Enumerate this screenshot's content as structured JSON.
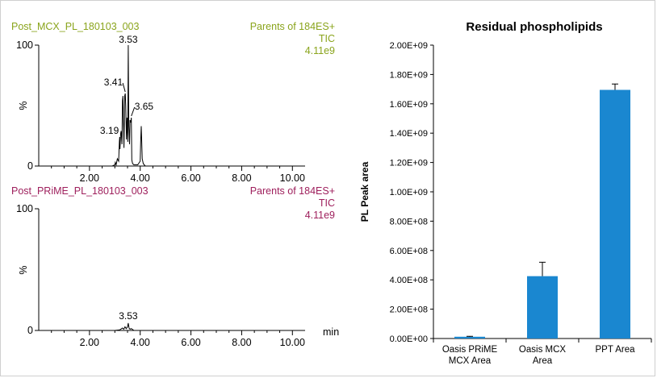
{
  "chart_data": [
    {
      "type": "line",
      "sample_name": "Post_MCX_PL_180103_003",
      "function_label": "Parents of 184ES+",
      "trace_label": "TIC",
      "scale_label": "4.11e9",
      "ylabel": "%",
      "xlim": [
        0,
        10.5
      ],
      "ylim": [
        0,
        100
      ],
      "x_ticks": [
        "2.00",
        "4.00",
        "6.00",
        "8.00",
        "10.00"
      ],
      "y_ticks": [
        "0",
        "100"
      ],
      "x_tick_values": [
        2,
        4,
        6,
        8,
        10
      ],
      "y_tick_values": [
        0,
        100
      ],
      "header_color": "#8aa41c",
      "x": [
        0.0,
        2.9,
        3.0,
        3.02,
        3.05,
        3.08,
        3.1,
        3.15,
        3.18,
        3.19,
        3.2,
        3.23,
        3.25,
        3.28,
        3.3,
        3.32,
        3.36,
        3.39,
        3.41,
        3.43,
        3.46,
        3.48,
        3.51,
        3.53,
        3.55,
        3.58,
        3.6,
        3.63,
        3.65,
        3.67,
        3.7,
        3.75,
        3.8,
        3.9,
        4.0,
        4.02,
        4.04,
        4.06,
        4.08,
        4.12,
        4.2,
        10.5
      ],
      "y": [
        0,
        0,
        1,
        3,
        1,
        4,
        6,
        4,
        20,
        24,
        14,
        27,
        29,
        18,
        54,
        58,
        15,
        58,
        60,
        50,
        22,
        40,
        20,
        100,
        33,
        18,
        38,
        36,
        40,
        5,
        2,
        1,
        1,
        1,
        4,
        20,
        33,
        20,
        6,
        2,
        0,
        0
      ],
      "peak_labels": [
        {
          "x": 3.53,
          "y": 100,
          "text": "3.53"
        },
        {
          "x": 3.41,
          "y": 60,
          "text": "3.41"
        },
        {
          "x": 3.19,
          "y": 24,
          "text": "3.19"
        },
        {
          "x": 3.65,
          "y": 40,
          "text": "3.65"
        }
      ]
    },
    {
      "type": "line",
      "sample_name": "Post_PRiME_PL_180103_003",
      "function_label": "Parents of 184ES+",
      "trace_label": "TIC",
      "scale_label": "4.11e9",
      "ylabel": "%",
      "xlabel": "min",
      "xlim": [
        0,
        10.5
      ],
      "ylim": [
        0,
        100
      ],
      "x_ticks": [
        "2.00",
        "4.00",
        "6.00",
        "8.00",
        "10.00"
      ],
      "y_ticks": [
        "0",
        "100"
      ],
      "x_tick_values": [
        2,
        4,
        6,
        8,
        10
      ],
      "y_tick_values": [
        0,
        100
      ],
      "header_color": "#9e1f5c",
      "x": [
        0.0,
        3.0,
        3.2,
        3.3,
        3.35,
        3.4,
        3.45,
        3.5,
        3.53,
        3.56,
        3.6,
        3.65,
        3.75,
        10.5
      ],
      "y": [
        0,
        0,
        0.5,
        2,
        1,
        3,
        1.5,
        3,
        6,
        2,
        1,
        1.5,
        0,
        0
      ],
      "peak_labels": [
        {
          "x": 3.53,
          "y": 6,
          "text": "3.53"
        }
      ]
    },
    {
      "type": "bar",
      "title": "Residual phospholipids",
      "ylabel": "PL Peak area",
      "categories": [
        "Oasis PRiME MCX Area",
        "Oasis MCX Area",
        "PPT Area"
      ],
      "category_lines": [
        [
          "Oasis PRiME",
          "MCX Area"
        ],
        [
          "Oasis MCX",
          "Area"
        ],
        [
          "PPT Area"
        ]
      ],
      "values": [
        12000000,
        425000000,
        1695000000
      ],
      "errors": [
        3000000,
        95000000,
        40000000
      ],
      "ylim": [
        0,
        2000000000
      ],
      "y_tick_values": [
        0,
        200000000,
        400000000,
        600000000,
        800000000,
        1000000000,
        1200000000,
        1400000000,
        1600000000,
        1800000000,
        2000000000
      ],
      "y_ticks": [
        "0.00E+00",
        "2.00E+08",
        "4.00E+08",
        "6.00E+08",
        "8.00E+08",
        "1.00E+09",
        "1.20E+09",
        "1.40E+09",
        "1.60E+09",
        "1.80E+09",
        "2.00E+09"
      ],
      "bar_color": "#1a87d0"
    }
  ]
}
